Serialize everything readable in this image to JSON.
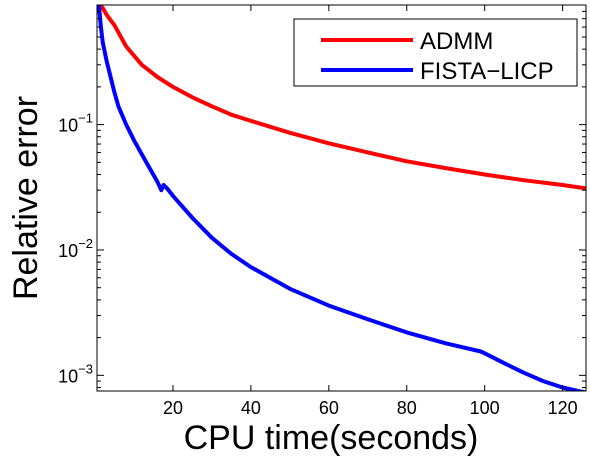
{
  "chart_data": {
    "type": "line",
    "title": "",
    "xlabel": "CPU time(seconds)",
    "ylabel": "Relative error",
    "x_scale": "linear",
    "y_scale": "log",
    "xlim": [
      0.5,
      126
    ],
    "ylim": [
      0.00075,
      0.9
    ],
    "x_ticks": [
      {
        "value": 20,
        "label": "20"
      },
      {
        "value": 40,
        "label": "40"
      },
      {
        "value": 60,
        "label": "60"
      },
      {
        "value": 80,
        "label": "80"
      },
      {
        "value": 100,
        "label": "100"
      },
      {
        "value": 120,
        "label": "120"
      }
    ],
    "y_ticks": [
      {
        "value": 0.1,
        "base": "10",
        "exp": "−1"
      },
      {
        "value": 0.01,
        "base": "10",
        "exp": "−2"
      },
      {
        "value": 0.001,
        "base": "10",
        "exp": "−3"
      }
    ],
    "grid": false,
    "legend_position": "top-right",
    "series": [
      {
        "name": "ADMM",
        "color": "#ff0000",
        "x": [
          1.2,
          2,
          3,
          5,
          8,
          12,
          16,
          20,
          25,
          30,
          35,
          40,
          50,
          60,
          70,
          80,
          90,
          100,
          110,
          120,
          126
        ],
        "y": [
          0.9,
          0.85,
          0.75,
          0.62,
          0.42,
          0.3,
          0.24,
          0.2,
          0.165,
          0.14,
          0.12,
          0.107,
          0.086,
          0.071,
          0.06,
          0.051,
          0.045,
          0.04,
          0.036,
          0.033,
          0.031
        ]
      },
      {
        "name": "FISTA−LICP",
        "color": "#0000ff",
        "x": [
          1,
          1.5,
          2,
          3,
          4,
          5,
          6,
          8,
          10,
          12,
          14,
          16,
          17,
          17.6,
          18.5,
          20,
          25,
          30,
          35,
          40,
          50,
          60,
          70,
          80,
          90,
          99,
          100,
          105,
          110,
          115,
          120,
          124,
          126
        ],
        "y": [
          0.9,
          0.6,
          0.45,
          0.32,
          0.24,
          0.18,
          0.14,
          0.1,
          0.075,
          0.058,
          0.045,
          0.035,
          0.03,
          0.033,
          0.031,
          0.027,
          0.018,
          0.0125,
          0.0093,
          0.0073,
          0.0049,
          0.0036,
          0.0028,
          0.0022,
          0.0018,
          0.00155,
          0.0015,
          0.00125,
          0.00105,
          0.0009,
          0.0008,
          0.00075,
          0.00073
        ]
      }
    ]
  }
}
